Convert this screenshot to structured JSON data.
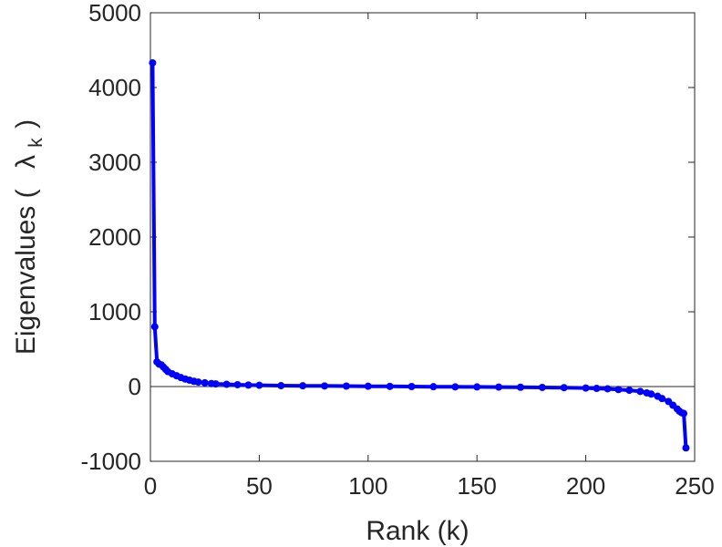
{
  "chart_data": {
    "type": "line",
    "xlabel": "Rank (k)",
    "ylabel": "Eigenvalues (",
    "ylabel_symbol": "λ",
    "ylabel_subscript": "k",
    "ylabel_close": ")",
    "xlim": [
      0,
      250
    ],
    "ylim": [
      -1000,
      5000
    ],
    "xticks": [
      0,
      50,
      100,
      150,
      200,
      250
    ],
    "yticks": [
      -1000,
      0,
      1000,
      2000,
      3000,
      4000,
      5000
    ],
    "xtick_labels": [
      "0",
      "50",
      "100",
      "150",
      "200",
      "250"
    ],
    "ytick_labels": [
      "-1000",
      "0",
      "1000",
      "2000",
      "3000",
      "4000",
      "5000"
    ],
    "zero_line": true,
    "grid": false,
    "color": "#0000ff",
    "series": [
      {
        "x": [
          1,
          2,
          3,
          4,
          5,
          6,
          7,
          8,
          10,
          12,
          14,
          16,
          18,
          20,
          22,
          25,
          28,
          30,
          35,
          40,
          45,
          50,
          60,
          70,
          80,
          90,
          100,
          110,
          120,
          130,
          140,
          150,
          160,
          170,
          180,
          190,
          200,
          205,
          210,
          215,
          220,
          225,
          228,
          230,
          233,
          235,
          238,
          240,
          242,
          243,
          244,
          245,
          246
        ],
        "y": [
          4330,
          800,
          330,
          300,
          290,
          260,
          230,
          200,
          170,
          145,
          120,
          100,
          85,
          70,
          60,
          50,
          40,
          35,
          30,
          25,
          20,
          17,
          12,
          10,
          8,
          6,
          4,
          2,
          0,
          -2,
          -4,
          -5,
          -7,
          -9,
          -12,
          -15,
          -20,
          -25,
          -30,
          -40,
          -50,
          -65,
          -85,
          -100,
          -130,
          -160,
          -200,
          -250,
          -300,
          -330,
          -350,
          -360,
          -820
        ]
      }
    ]
  }
}
